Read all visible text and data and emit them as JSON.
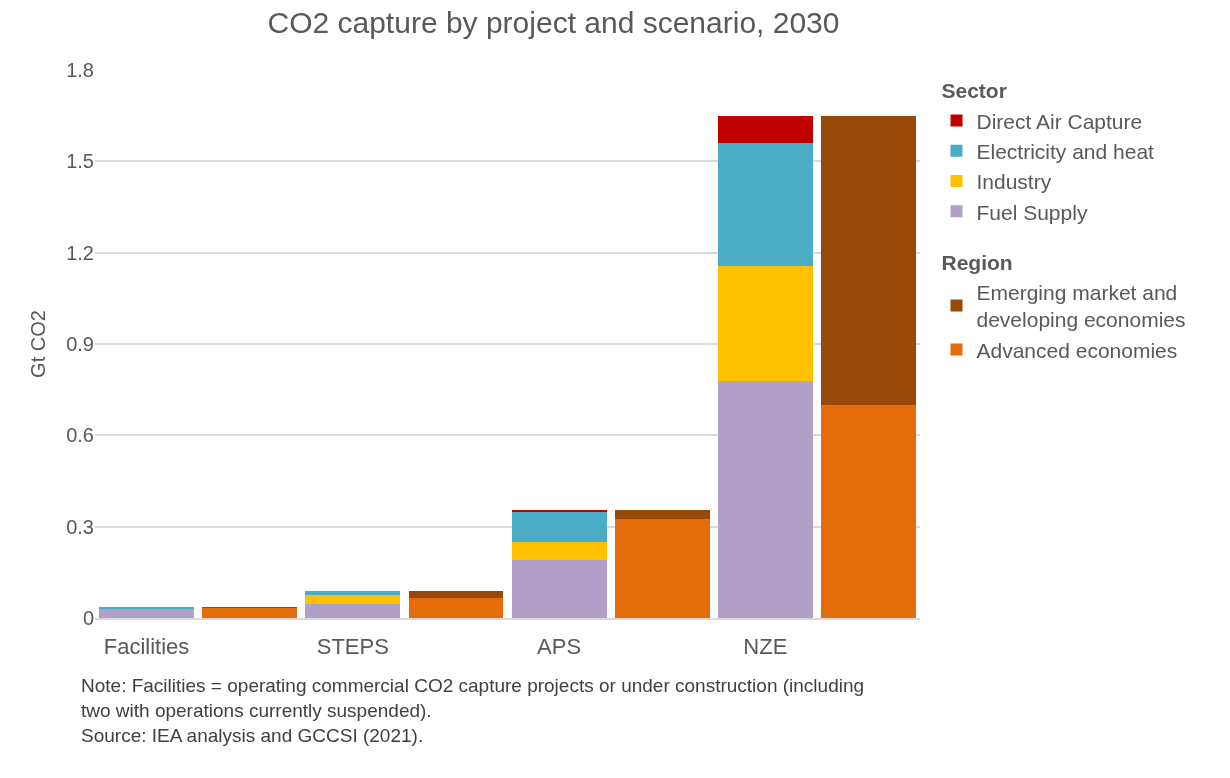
{
  "chart_data": {
    "type": "bar",
    "stacked": true,
    "title": "CO2 capture by project and scenario, 2030",
    "ylabel": "Gt CO2",
    "legend_title": "Sector",
    "categories": [
      "Facilities",
      null,
      "STEPS",
      null,
      "APS",
      null,
      "NZE",
      null
    ],
    "series": [
      {
        "name": "Fuel Supply",
        "color": "#b1a0c7",
        "values": [
          0.03,
          null,
          0.046,
          null,
          0.19,
          null,
          0.78,
          null
        ]
      },
      {
        "name": "Industry",
        "color": "#ffc000",
        "values": [
          null,
          null,
          0.03,
          null,
          0.06,
          null,
          0.375,
          null
        ]
      },
      {
        "name": "Electricity and heat",
        "color": "#4bacc6",
        "values": [
          0.004,
          null,
          0.012,
          null,
          0.1,
          null,
          0.405,
          null
        ]
      },
      {
        "name": "Direct Air Capture",
        "color": "#c00000",
        "values": [
          null,
          null,
          null,
          null,
          0.005,
          null,
          0.09,
          null
        ]
      },
      {
        "name": "Advanced economies",
        "color": "#e46c0a",
        "values": [
          null,
          0.033,
          null,
          0.067,
          null,
          0.325,
          null,
          0.7
        ]
      },
      {
        "name": "Emerging market and developing economies",
        "color": "#984807",
        "values": [
          null,
          0.002,
          null,
          0.021,
          null,
          0.03,
          null,
          0.95
        ]
      }
    ],
    "ylim": [
      0,
      1.8
    ],
    "yticks": [
      0,
      0.3,
      0.6,
      0.9,
      1.2,
      1.5,
      1.8
    ],
    "grid": "y",
    "legend": "right",
    "annotations": [
      "Region",
      "Note: Facilities = operating commercial CO2 capture projects or under construction (including two with operations currently suspended).",
      "Source: IEA analysis and GCCSI (2021)."
    ]
  }
}
